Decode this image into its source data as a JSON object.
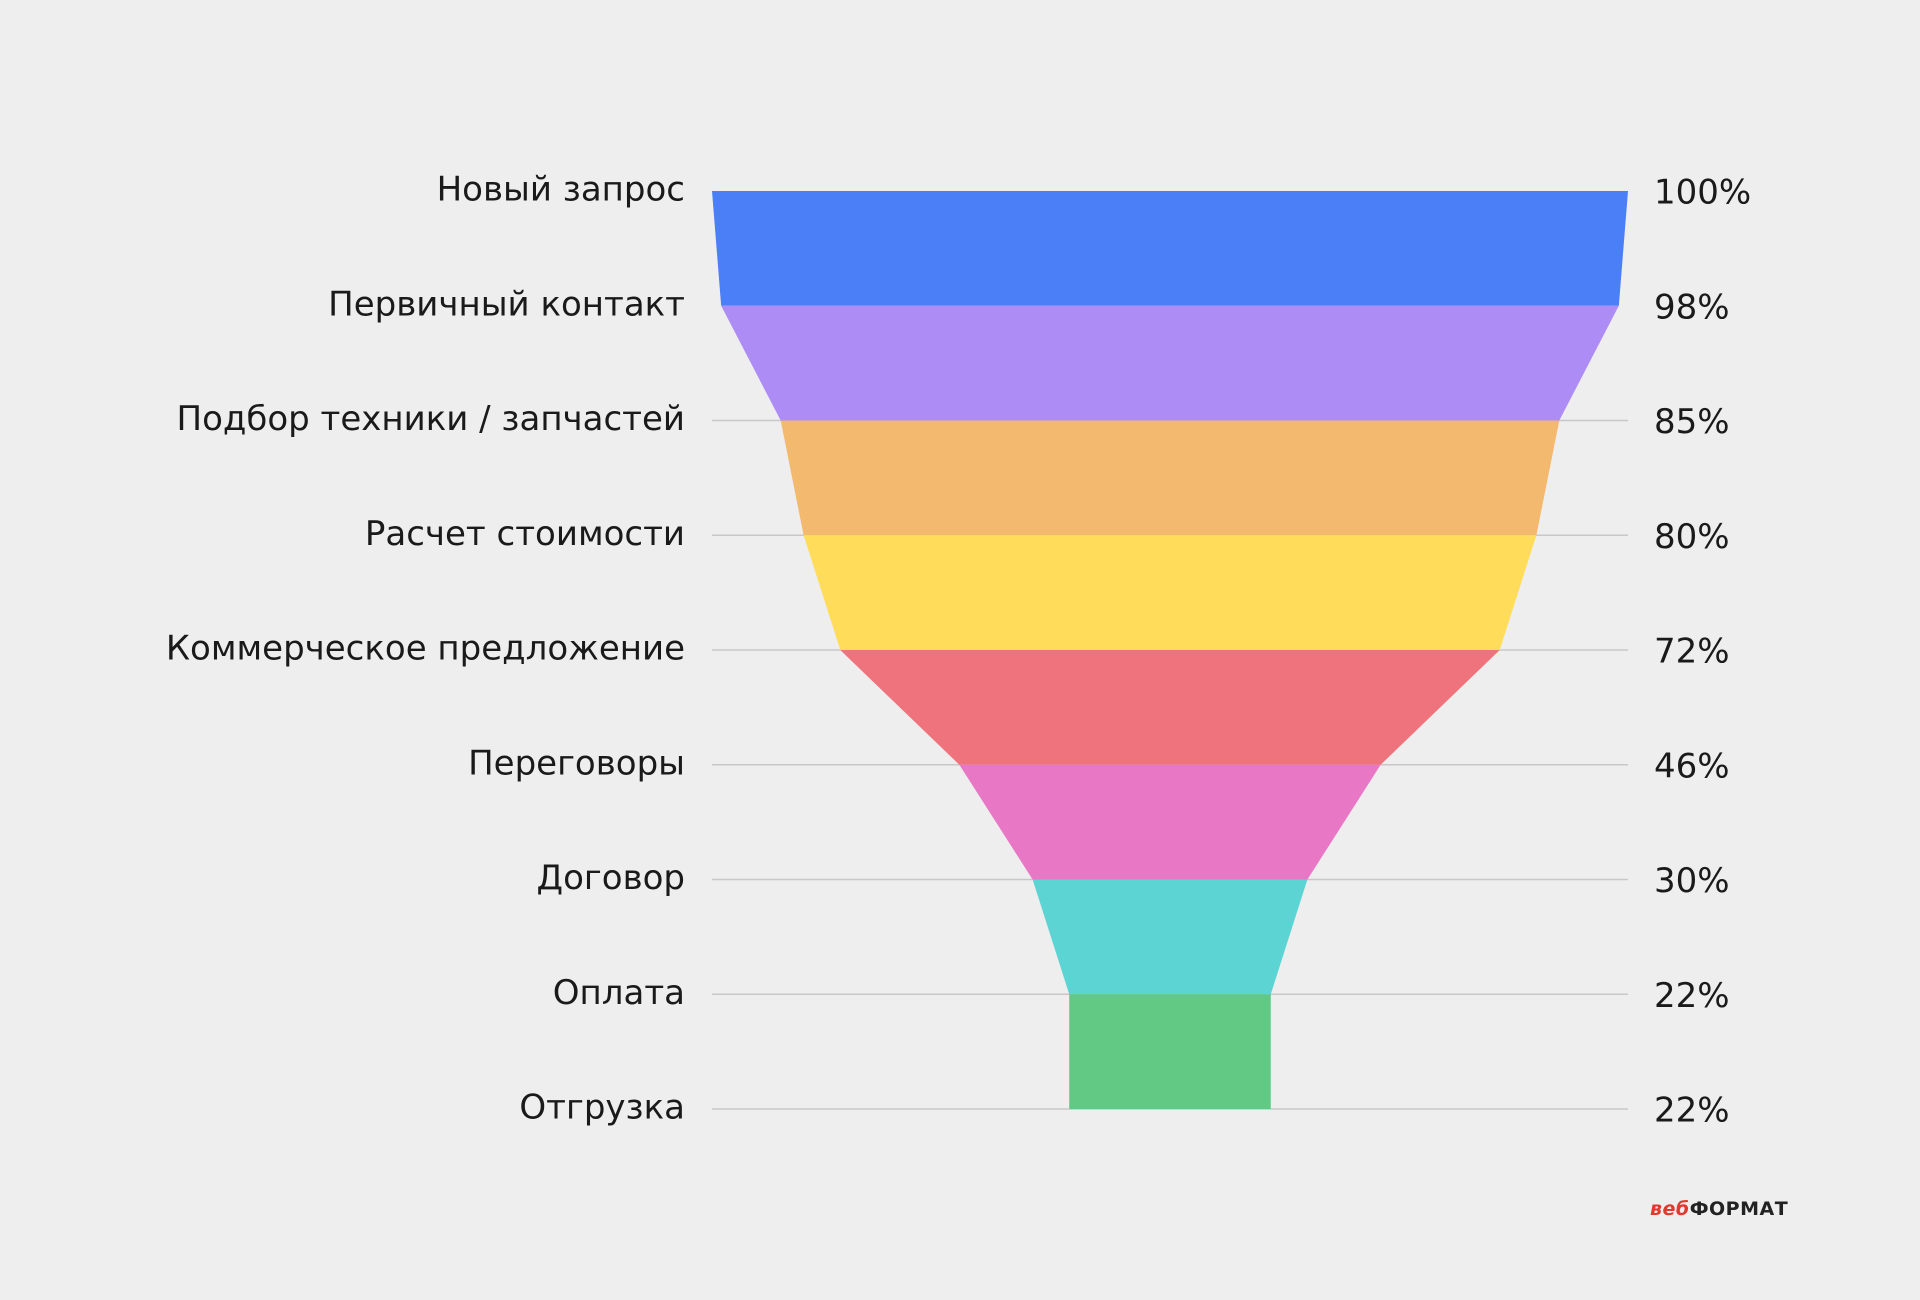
{
  "chart_data": {
    "type": "funnel",
    "categories": [
      "Новый запрос",
      "Первичный контакт",
      "Подбор техники / запчастей",
      "Расчет стоимости",
      "Коммерческое предложение",
      "Переговоры",
      "Договор",
      "Оплата",
      "Отгрузка"
    ],
    "values": [
      100,
      98,
      85,
      80,
      72,
      46,
      30,
      22,
      22
    ],
    "value_labels": [
      "100%",
      "98%",
      "85%",
      "80%",
      "72%",
      "46%",
      "30%",
      "22%",
      "22%"
    ],
    "colors": [
      "#4b7ff7",
      "#ad8cf5",
      "#f3b96f",
      "#ffdd5a",
      "#ef737c",
      "#e878c5",
      "#5cd4d3",
      "#61c983",
      "#61c983"
    ],
    "grid": true
  },
  "logo": {
    "part1": "веб",
    "part2": "ФОРМАТ"
  }
}
